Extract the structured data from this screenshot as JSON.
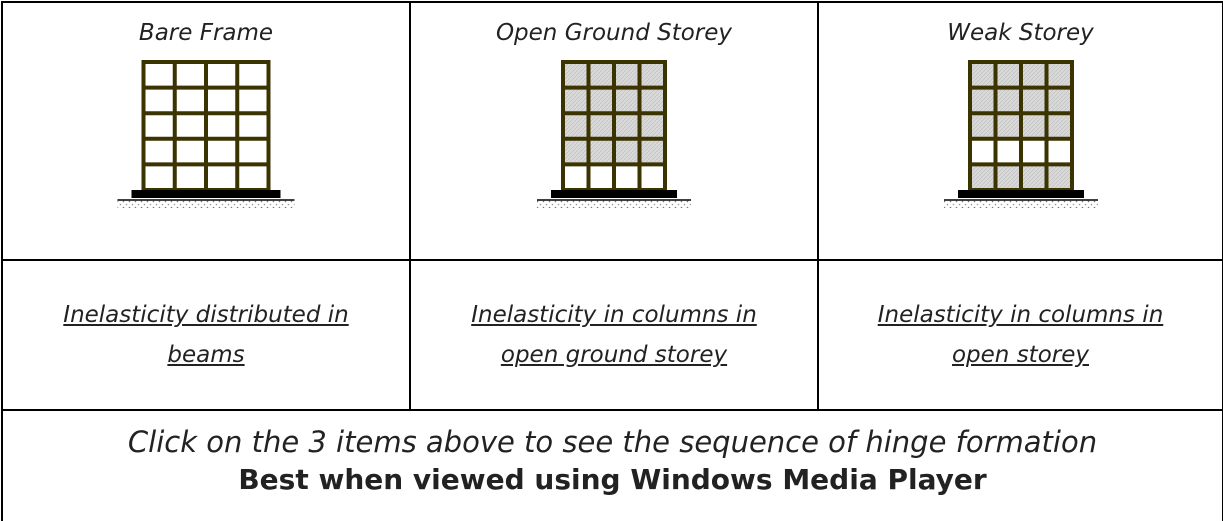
{
  "table": {
    "rows": [
      [
        {
          "title": "Bare Frame"
        },
        {
          "title": "Open Ground Storey"
        },
        {
          "title": "Weak Storey"
        }
      ],
      [
        {
          "link": "Inelasticity distributed in beams"
        },
        {
          "link": "Inelasticity in columns in open ground storey"
        },
        {
          "link": "Inelasticity in columns in open storey"
        }
      ]
    ]
  },
  "footer": {
    "instruction": "Click on the 3 items above to see the sequence of hinge formation",
    "note": "Best when viewed using Windows Media Player"
  }
}
